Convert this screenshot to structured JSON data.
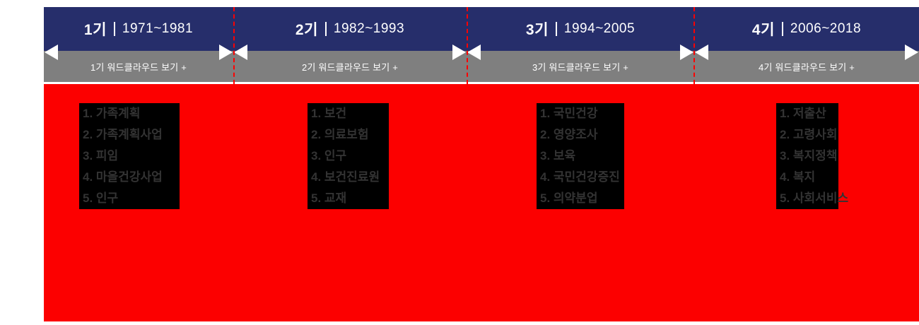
{
  "colors": {
    "header_navy": "#262e6b",
    "button_gray": "#7f7f7f",
    "panel_red": "#fc0000",
    "keyword_box_black": "#000000",
    "keyword_text": "#333333",
    "divider_dashed_red": "#ff0000",
    "arrow_white": "#ffffff"
  },
  "periods": [
    {
      "label": "1기",
      "years": "1971~1981",
      "wordcloud_button": "1기 워드클라우드 보기 +",
      "keywords": [
        "1. 가족계획",
        "2. 가족계획사업",
        "3. 피임",
        "4. 마을건강사업",
        "5. 인구"
      ]
    },
    {
      "label": "2기",
      "years": "1982~1993",
      "wordcloud_button": "2기 워드클라우드 보기 +",
      "keywords": [
        "1. 보건",
        "2. 의료보험",
        "3. 인구",
        "4. 보건진료원",
        "5. 교재"
      ]
    },
    {
      "label": "3기",
      "years": "1994~2005",
      "wordcloud_button": "3기 워드클라우드 보기 +",
      "keywords": [
        "1. 국민건강",
        "2. 영양조사",
        "3. 보육",
        "4. 국민건강증진",
        "5. 의약분업"
      ]
    },
    {
      "label": "4기",
      "years": "2006~2018",
      "wordcloud_button": "4기 워드클라우드 보기 +",
      "keywords": [
        "1. 저출산",
        "2. 고령사회",
        "3. 복지정책",
        "4. 복지",
        "5. 사회서비스"
      ]
    }
  ]
}
